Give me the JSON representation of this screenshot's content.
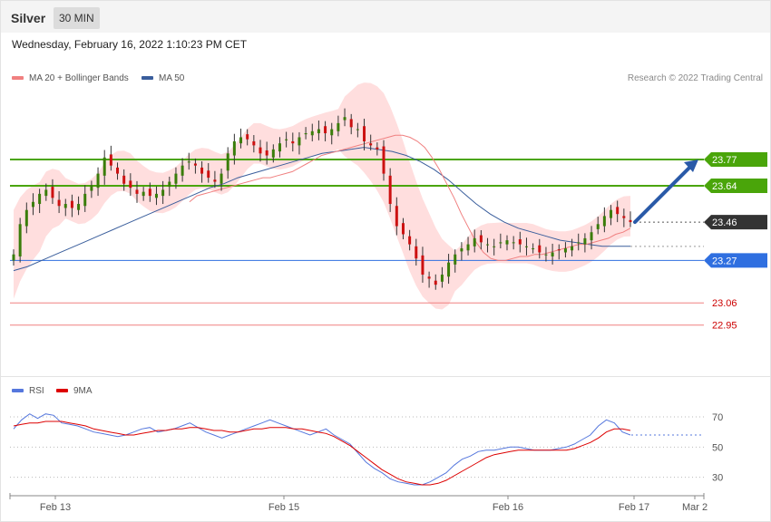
{
  "header": {
    "symbol": "Silver",
    "timeframe": "30 MIN"
  },
  "timestamp": "Wednesday, February 16, 2022 1:10:23 PM CET",
  "legend": {
    "ma20_label": "MA 20 + Bollinger Bands",
    "ma50_label": "MA 50",
    "rsi_label": "RSI",
    "ma9_label": "9MA"
  },
  "copyright": "Research © 2022 Trading Central",
  "colors": {
    "ma20": "#f08080",
    "ma50": "#3a5e9c",
    "band_fill": "#ffdede",
    "green_line": "#4aa50a",
    "blue_line": "#2f6fe0",
    "red_line": "#f08080",
    "price_tag": "#333333",
    "rsi": "#5577dd",
    "rsi_ma": "#dd0000",
    "candle_up": "#3a7d0a",
    "candle_down": "#cc1111",
    "arrow": "#2a5aa8"
  },
  "chart_data": [
    {
      "type": "candlestick",
      "title": "Silver 30 MIN",
      "ylim": [
        22.72,
        24.12
      ],
      "x_ticks": [
        "Feb 13",
        "Feb 15",
        "Feb 16",
        "Feb 17",
        "Mar 2"
      ],
      "levels": [
        {
          "label": "23.77",
          "value": 23.77,
          "kind": "resistance"
        },
        {
          "label": "23.64",
          "value": 23.64,
          "kind": "resistance"
        },
        {
          "label": "23.46",
          "value": 23.46,
          "kind": "last-price"
        },
        {
          "label": "23.27",
          "value": 23.27,
          "kind": "pivot"
        },
        {
          "label": "23.06",
          "value": 23.06,
          "kind": "support"
        },
        {
          "label": "22.95",
          "value": 22.95,
          "kind": "support"
        }
      ],
      "close": [
        23.3,
        23.45,
        23.52,
        23.56,
        23.6,
        23.62,
        23.58,
        23.54,
        23.55,
        23.53,
        23.55,
        23.6,
        23.64,
        23.7,
        23.78,
        23.74,
        23.7,
        23.65,
        23.63,
        23.6,
        23.61,
        23.59,
        23.6,
        23.62,
        23.66,
        23.7,
        23.74,
        23.76,
        23.74,
        23.7,
        23.68,
        23.66,
        23.7,
        23.8,
        23.86,
        23.88,
        23.87,
        23.84,
        23.8,
        23.79,
        23.82,
        23.85,
        23.87,
        23.85,
        23.88,
        23.9,
        23.91,
        23.92,
        23.9,
        23.92,
        23.95,
        23.98,
        23.93,
        23.92,
        23.86,
        23.84,
        23.82,
        23.7,
        23.55,
        23.44,
        23.4,
        23.35,
        23.28,
        23.2,
        23.18,
        23.15,
        23.2,
        23.26,
        23.3,
        23.33,
        23.35,
        23.38,
        23.36,
        23.35,
        23.34,
        23.36,
        23.37,
        23.36,
        23.35,
        23.34,
        23.33,
        23.31,
        23.3,
        23.31,
        23.32,
        23.33,
        23.34,
        23.36,
        23.38,
        23.41,
        23.45,
        23.49,
        23.52,
        23.5,
        23.48,
        23.46
      ],
      "ma20": [
        null,
        null,
        null,
        null,
        null,
        null,
        null,
        null,
        null,
        null,
        null,
        null,
        null,
        null,
        null,
        null,
        null,
        null,
        null,
        23.56,
        23.59,
        23.6,
        23.61,
        23.62,
        23.63,
        23.64,
        23.65,
        23.66,
        23.67,
        23.68,
        23.68,
        23.69,
        23.7,
        23.71,
        23.73,
        23.75,
        23.77,
        23.79,
        23.8,
        23.81,
        23.82,
        23.83,
        23.84,
        23.85,
        23.86,
        23.87,
        23.88,
        23.89,
        23.89,
        23.88,
        23.86,
        23.83,
        23.78,
        23.72,
        23.65,
        23.58,
        23.5,
        23.43,
        23.36,
        23.31,
        23.28,
        23.27,
        23.27,
        23.28,
        23.29,
        23.29,
        23.3,
        23.3,
        23.31,
        23.32,
        23.33,
        23.34,
        23.35,
        23.35,
        23.36,
        23.37,
        23.38,
        23.4,
        23.41,
        23.43
      ],
      "ma50": [
        23.22,
        23.24,
        23.27,
        23.3,
        23.33,
        23.36,
        23.39,
        23.42,
        23.45,
        23.48,
        23.51,
        23.54,
        23.57,
        23.6,
        23.63,
        23.65,
        23.68,
        23.7,
        23.72,
        23.74,
        23.76,
        23.78,
        23.8,
        23.81,
        23.82,
        23.83,
        23.82,
        23.81,
        23.79,
        23.76,
        23.72,
        23.67,
        23.61,
        23.55,
        23.5,
        23.46,
        23.43,
        23.41,
        23.39,
        23.37,
        23.36,
        23.35,
        23.34,
        23.34,
        23.34
      ],
      "rsi_ylim": [
        22,
        82
      ],
      "rsi_ticks": [
        70,
        50,
        30
      ],
      "rsi": [
        62,
        68,
        72,
        69,
        72,
        71,
        66,
        65,
        64,
        62,
        60,
        59,
        58,
        57,
        58,
        60,
        62,
        63,
        60,
        61,
        62,
        64,
        66,
        63,
        60,
        58,
        56,
        58,
        60,
        62,
        64,
        66,
        68,
        66,
        64,
        62,
        60,
        58,
        60,
        62,
        58,
        55,
        52,
        46,
        40,
        36,
        33,
        29,
        27,
        26,
        25,
        25,
        27,
        30,
        33,
        38,
        42,
        44,
        47,
        48,
        48,
        49,
        50,
        50,
        49,
        48,
        48,
        48,
        49,
        50,
        52,
        55,
        58,
        64,
        68,
        66,
        60,
        58
      ],
      "rsi_ma9": [
        64,
        65,
        66,
        66,
        67,
        67,
        67,
        66,
        65,
        64,
        62,
        61,
        60,
        59,
        58,
        58,
        59,
        60,
        61,
        61,
        62,
        62,
        63,
        63,
        62,
        61,
        61,
        60,
        60,
        61,
        62,
        62,
        63,
        63,
        63,
        62,
        62,
        61,
        60,
        59,
        57,
        54,
        51,
        47,
        43,
        39,
        35,
        32,
        29,
        27,
        26,
        25,
        25,
        26,
        28,
        31,
        34,
        37,
        40,
        43,
        45,
        46,
        47,
        48,
        48,
        48,
        48,
        48,
        48,
        48,
        49,
        51,
        53,
        56,
        60,
        62,
        62,
        61
      ]
    }
  ]
}
